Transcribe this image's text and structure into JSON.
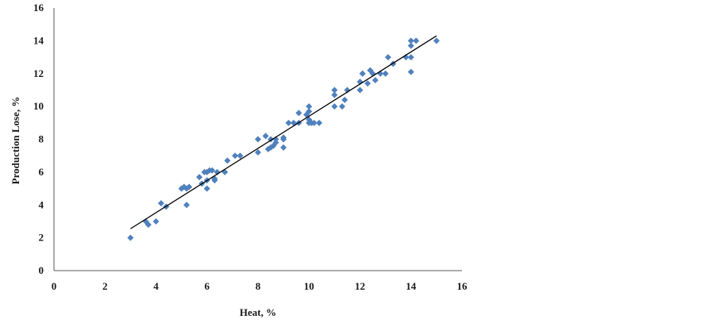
{
  "chart_data": {
    "type": "scatter",
    "title": "",
    "xlabel": "Heat, %",
    "ylabel": "Production Lose, %",
    "xlim": [
      0,
      16
    ],
    "ylim": [
      0,
      16
    ],
    "xticks": [
      "0",
      "2",
      "4",
      "6",
      "8",
      "10",
      "12",
      "14",
      "16"
    ],
    "yticks": [
      "0",
      "2",
      "4",
      "6",
      "8",
      "10",
      "12",
      "14",
      "16"
    ],
    "grid": false,
    "legend": "none",
    "colors": {
      "points": "#4f81bd",
      "trendline": "#000000",
      "axis": "#595959"
    },
    "trendline": {
      "x": [
        3.0,
        15.0
      ],
      "y": [
        2.55,
        14.3
      ]
    },
    "series": [
      {
        "x": [
          3.0,
          3.6,
          3.7,
          4.0,
          4.2,
          4.4,
          5.0,
          5.1,
          5.2,
          5.2,
          5.3,
          5.7,
          5.8,
          5.9,
          6.0,
          6.0,
          6.0,
          6.1,
          6.2,
          6.3,
          6.3,
          6.4,
          6.7,
          6.8,
          7.1,
          7.3,
          8.0,
          8.0,
          8.3,
          8.4,
          8.5,
          8.5,
          8.6,
          8.7,
          8.7,
          9.0,
          9.0,
          9.0,
          9.2,
          9.4,
          9.6,
          9.6,
          9.9,
          10.0,
          10.0,
          10.0,
          10.0,
          10.1,
          10.2,
          10.4,
          11.0,
          11.0,
          11.0,
          11.3,
          11.4,
          11.5,
          12.0,
          12.0,
          12.1,
          12.1,
          12.3,
          12.4,
          12.5,
          12.6,
          12.8,
          13.0,
          13.1,
          13.3,
          13.8,
          14.0,
          14.0,
          14.0,
          14.0,
          14.2,
          15.0
        ],
        "y": [
          2.0,
          3.0,
          2.8,
          3.0,
          4.1,
          3.9,
          5.0,
          5.1,
          4.0,
          5.0,
          5.1,
          5.7,
          5.3,
          6.0,
          5.0,
          5.5,
          6.0,
          6.1,
          6.1,
          5.5,
          5.6,
          6.0,
          6.0,
          6.7,
          7.0,
          7.0,
          7.2,
          8.0,
          8.2,
          7.4,
          8.0,
          7.5,
          7.6,
          7.8,
          8.0,
          7.5,
          8.0,
          8.1,
          9.0,
          9.0,
          9.0,
          9.6,
          9.5,
          9.0,
          9.2,
          9.7,
          10.0,
          9.0,
          9.0,
          9.0,
          10.0,
          10.7,
          11.0,
          10.0,
          10.4,
          11.0,
          11.0,
          11.5,
          12.0,
          12.0,
          11.4,
          12.2,
          12.0,
          11.6,
          12.0,
          12.0,
          13.0,
          12.6,
          13.0,
          12.1,
          13.0,
          13.7,
          14.0,
          14.0,
          14.0
        ]
      }
    ]
  }
}
